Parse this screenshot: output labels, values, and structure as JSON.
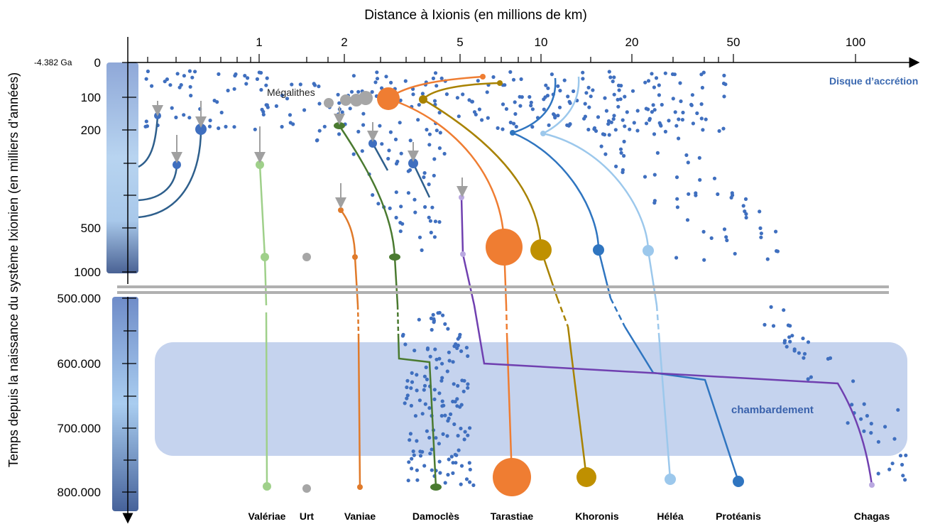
{
  "x_axis": {
    "title": "Distance à Ixionis (en millions de km)",
    "ticks": [
      "1",
      "2",
      "5",
      "10",
      "20",
      "50",
      "100"
    ]
  },
  "y_axis": {
    "title": "Temps depuis la naissance du système Ixionien (en milliers d’années)",
    "origin_label": "-4.382 Ga",
    "ticks_upper": [
      "0",
      "100",
      "200",
      "500",
      "1000"
    ],
    "ticks_lower": [
      "500.000",
      "600.000",
      "700.000",
      "800.000"
    ]
  },
  "annotations": {
    "disk": "Disque d’accrétion",
    "megaliths": "Mégalithes",
    "upheaval": "chambardement"
  },
  "bodies": [
    "Valériae",
    "Urt",
    "Vaniae",
    "Damoclès",
    "Tarastiae",
    "Khoronis",
    "Héléa",
    "Protéanis",
    "Chagas"
  ]
}
